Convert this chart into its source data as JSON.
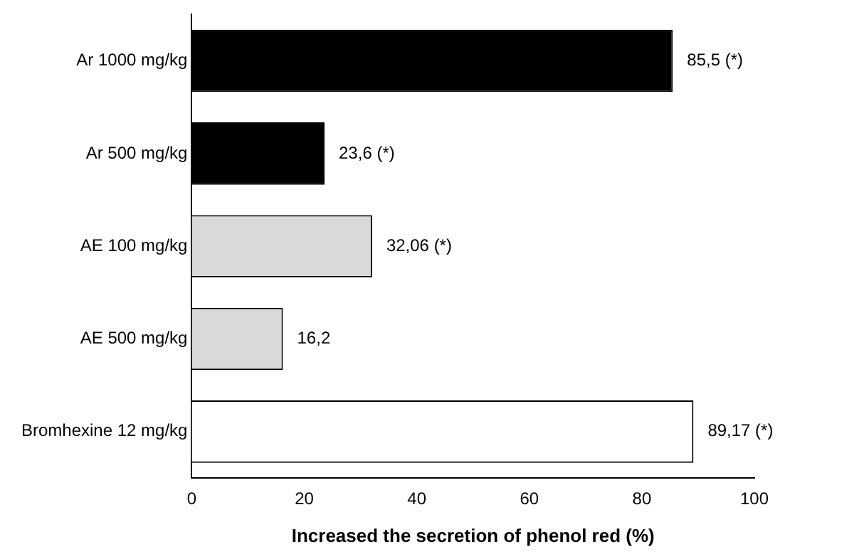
{
  "chart_data": {
    "type": "bar",
    "orientation": "horizontal",
    "xlabel": "Increased the secretion of phenol red (%)",
    "categories": [
      "Ar 1000 mg/kg",
      "Ar 500 mg/kg",
      "AE 100 mg/kg",
      "AE 500 mg/kg",
      "Bromhexine 12 mg/kg"
    ],
    "values": [
      85.5,
      23.6,
      32.06,
      16.2,
      89.17
    ],
    "colors": [
      "#000000",
      "#000000",
      "#d9d9d9",
      "#d9d9d9",
      "#ffffff"
    ],
    "value_labels": [
      "85,5 (*)",
      "23,6 (*)",
      "32,06 (*)",
      "16,2",
      "89,17 (*)"
    ],
    "xlim": [
      0,
      100
    ],
    "xticks": [
      0,
      20,
      40,
      60,
      80,
      100
    ],
    "grid": false,
    "legend": false
  }
}
